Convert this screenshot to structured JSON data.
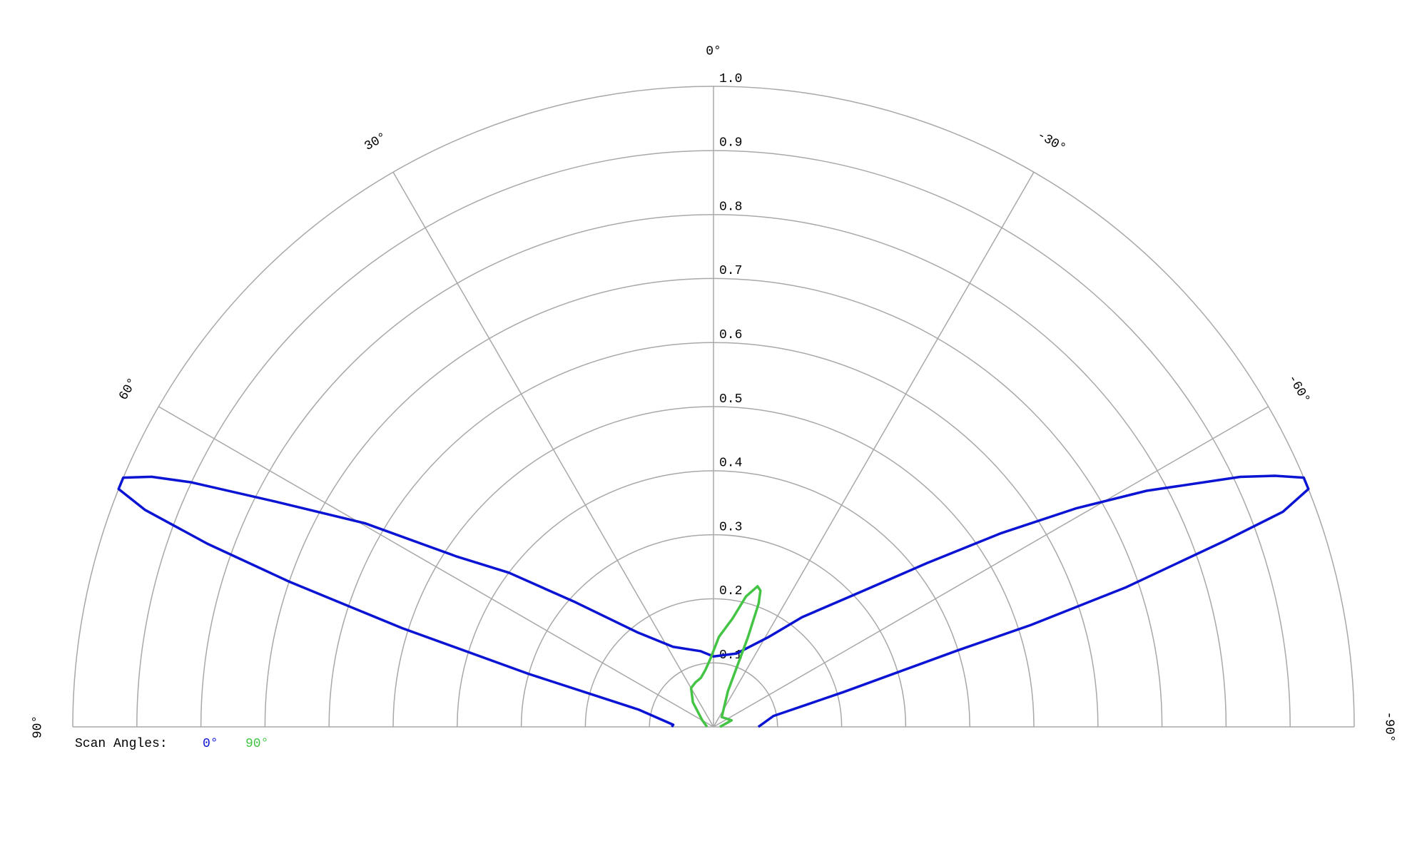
{
  "chart_data": {
    "type": "polar",
    "thetalim": [
      90,
      -90
    ],
    "thetaticks": [
      {
        "value": 90,
        "label": "90°"
      },
      {
        "value": 60,
        "label": "60°"
      },
      {
        "value": 30,
        "label": "30°"
      },
      {
        "value": 0,
        "label": "0°"
      },
      {
        "value": -30,
        "label": "-30°"
      },
      {
        "value": -60,
        "label": "-60°"
      },
      {
        "value": -90,
        "label": "-90°"
      }
    ],
    "rlim": [
      0,
      1
    ],
    "rticks": [
      0.1,
      0.2,
      0.3,
      0.4,
      0.5,
      0.6,
      0.7,
      0.8,
      0.9,
      {
        "value": 1,
        "label": "1.0"
      }
    ],
    "grid": true,
    "legend_title": "Scan Angles:",
    "series": [
      {
        "name": "0°",
        "color": "#0a14d2",
        "theta": [
          90,
          87,
          77,
          74,
          72.4,
          71.1,
          70.1,
          69.1,
          68.2,
          67.1,
          66,
          64.9,
          62.8,
          59.7,
          56.4,
          53,
          47.9,
          38.9,
          26.8,
          9.8,
          0,
          -17.4,
          -31.6,
          -38.9,
          -46.7,
          -52.5,
          -56,
          -58.9,
          -61.4,
          -64.6,
          -65.9,
          -67.1,
          -68.2,
          -69.3,
          -70,
          -71.3,
          -72.2,
          -72.6,
          -75,
          -79.7,
          -90
        ],
        "values": [
          0.065,
          0.063,
          0.12,
          0.3,
          0.51,
          0.7,
          0.84,
          0.95,
          1.0,
          1.0,
          0.96,
          0.9,
          0.77,
          0.63,
          0.48,
          0.4,
          0.29,
          0.19,
          0.14,
          0.12,
          0.11,
          0.12,
          0.165,
          0.22,
          0.3,
          0.42,
          0.54,
          0.66,
          0.77,
          0.91,
          0.96,
          1.0,
          1.0,
          0.95,
          0.85,
          0.68,
          0.52,
          0.4,
          0.21,
          0.095,
          0.07
        ]
      },
      {
        "name": "90°",
        "color": "#44c444",
        "theta": [
          90,
          60,
          40,
          30,
          22,
          14.5,
          8,
          3,
          -3.5,
          -10,
          -14,
          -17.4,
          -19,
          -20.1,
          -21,
          -22,
          -40,
          -70,
          -90
        ],
        "values": [
          0.01,
          0.02,
          0.05,
          0.07,
          0.075,
          0.079,
          0.09,
          0.105,
          0.141,
          0.172,
          0.21,
          0.23,
          0.225,
          0.205,
          0.15,
          0.06,
          0.02,
          0.03,
          0.01
        ]
      }
    ]
  }
}
